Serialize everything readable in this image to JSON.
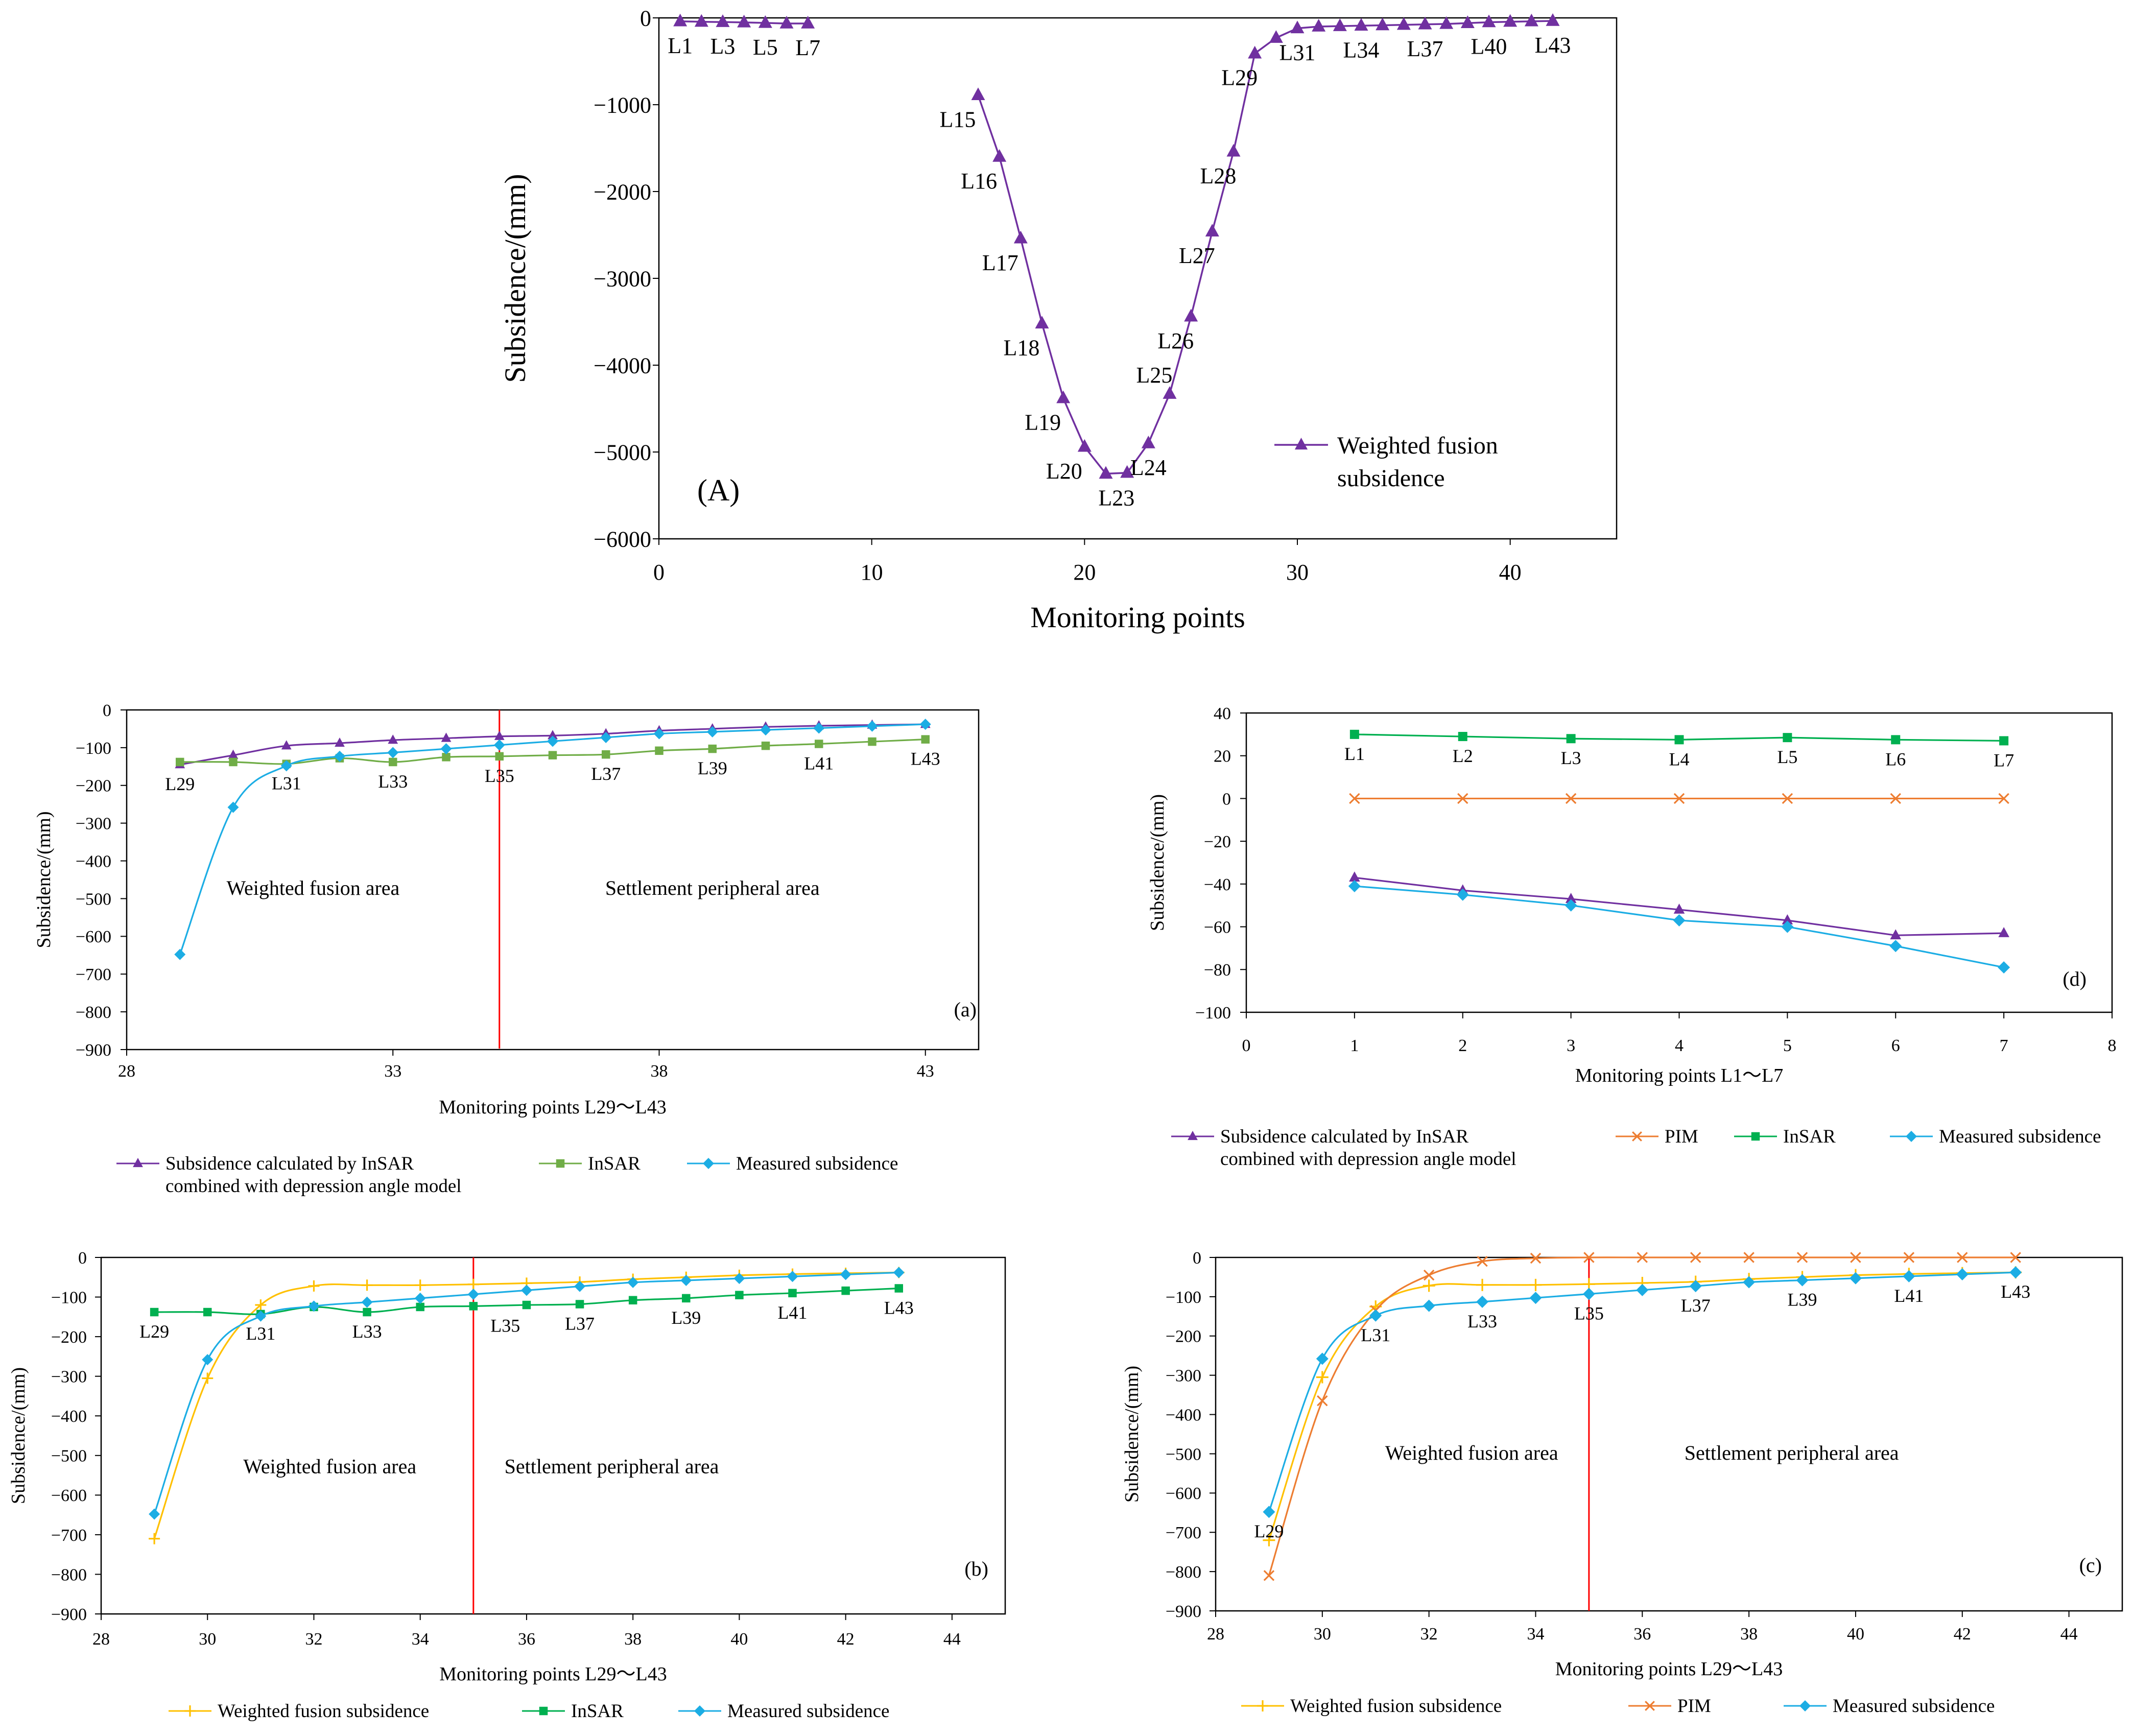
{
  "chart_data": [
    {
      "id": "A",
      "type": "line",
      "panel_label": "(A)",
      "xlabel": "Monitoring points",
      "ylabel": "Subsidence/(mm)",
      "xlim": [
        0,
        45
      ],
      "ylim": [
        -6000,
        0
      ],
      "xticks": [
        0,
        10,
        20,
        30,
        40
      ],
      "yticks": [
        0,
        -1000,
        -2000,
        -3000,
        -4000,
        -5000,
        -6000
      ],
      "legend_position": "bottom-right",
      "series": [
        {
          "name": "Weighted fusion subsidence",
          "color": "#7030A0",
          "marker": "triangle",
          "x": [
            1,
            2,
            3,
            4,
            5,
            6,
            7,
            15,
            16,
            17,
            18,
            19,
            20,
            21,
            22,
            23,
            24,
            25,
            26,
            27,
            28,
            29,
            30,
            31,
            32,
            33,
            34,
            35,
            36,
            37,
            38,
            39,
            40,
            41,
            42
          ],
          "y": [
            -40,
            -45,
            -48,
            -52,
            -58,
            -65,
            -65,
            -890,
            -1600,
            -2540,
            -3520,
            -4380,
            -4940,
            -5250,
            -5240,
            -4900,
            -4330,
            -3440,
            -2460,
            -1540,
            -410,
            -230,
            -120,
            -100,
            -95,
            -90,
            -85,
            -80,
            -75,
            -70,
            -60,
            -50,
            -45,
            -40,
            -35
          ]
        }
      ],
      "point_labels": [
        {
          "text": "L1",
          "x": 1,
          "y": -40,
          "pos": "below"
        },
        {
          "text": "L3",
          "x": 3,
          "y": -48,
          "pos": "below"
        },
        {
          "text": "L5",
          "x": 5,
          "y": -58,
          "pos": "below"
        },
        {
          "text": "L7",
          "x": 7,
          "y": -65,
          "pos": "below"
        },
        {
          "text": "L15",
          "x": 15,
          "y": -890,
          "pos": "below"
        },
        {
          "text": "L16",
          "x": 16,
          "y": -1600,
          "pos": "below"
        },
        {
          "text": "L17",
          "x": 17,
          "y": -2540,
          "pos": "below"
        },
        {
          "text": "L18",
          "x": 18,
          "y": -3520,
          "pos": "below"
        },
        {
          "text": "L19",
          "x": 19,
          "y": -4380,
          "pos": "below"
        },
        {
          "text": "L20",
          "x": 20,
          "y": -4940,
          "pos": "below"
        },
        {
          "text": "L23",
          "x": 21.5,
          "y": -5250,
          "pos": "below"
        },
        {
          "text": "L24",
          "x": 23,
          "y": -4900,
          "pos": "below"
        },
        {
          "text": "L25",
          "x": 24,
          "y": -4330,
          "pos": "above"
        },
        {
          "text": "L26",
          "x": 25,
          "y": -3440,
          "pos": "below"
        },
        {
          "text": "L27",
          "x": 26,
          "y": -2460,
          "pos": "below"
        },
        {
          "text": "L28",
          "x": 27,
          "y": -1540,
          "pos": "below"
        },
        {
          "text": "L29",
          "x": 28,
          "y": -410,
          "pos": "below"
        },
        {
          "text": "L31",
          "x": 30,
          "y": -120,
          "pos": "below"
        },
        {
          "text": "L34",
          "x": 33,
          "y": -90,
          "pos": "below"
        },
        {
          "text": "L37",
          "x": 36,
          "y": -75,
          "pos": "below"
        },
        {
          "text": "L40",
          "x": 39,
          "y": -50,
          "pos": "below"
        },
        {
          "text": "L43",
          "x": 42,
          "y": -35,
          "pos": "below"
        }
      ]
    },
    {
      "id": "a",
      "type": "line",
      "panel_label": "(a)",
      "xlabel": "Monitoring points L29～L43",
      "ylabel": "Subsidence/(mm)",
      "xlim": [
        28,
        44
      ],
      "ylim": [
        -900,
        0
      ],
      "xticks": [
        28,
        33,
        38,
        43
      ],
      "yticks": [
        0,
        -100,
        -200,
        -300,
        -400,
        -500,
        -600,
        -700,
        -800,
        -900
      ],
      "divider_x": 35,
      "region_labels": [
        {
          "text": "Weighted fusion area",
          "x": 31.5,
          "y": -490
        },
        {
          "text": "Settlement peripheral area",
          "x": 39,
          "y": -490
        }
      ],
      "series": [
        {
          "name": "Subsidence calculated by InSAR combined with depression angle model",
          "color": "#7030A0",
          "marker": "triangle",
          "smooth": true,
          "x": [
            29,
            30,
            31,
            32,
            33,
            34,
            35,
            36,
            37,
            38,
            39,
            40,
            41,
            42,
            43
          ],
          "y": [
            -145,
            -120,
            -95,
            -88,
            -80,
            -75,
            -70,
            -68,
            -63,
            -55,
            -50,
            -45,
            -42,
            -40,
            -38
          ]
        },
        {
          "name": "InSAR",
          "color": "#70AD47",
          "marker": "square",
          "smooth": true,
          "x": [
            29,
            30,
            31,
            32,
            33,
            34,
            35,
            36,
            37,
            38,
            39,
            40,
            41,
            42,
            43
          ],
          "y": [
            -138,
            -138,
            -143,
            -128,
            -138,
            -125,
            -123,
            -120,
            -118,
            -108,
            -103,
            -95,
            -90,
            -84,
            -78
          ]
        },
        {
          "name": "Measured subsidence",
          "color": "#1CADE4",
          "marker": "diamond",
          "smooth": true,
          "x": [
            29,
            30,
            31,
            32,
            33,
            34,
            35,
            36,
            37,
            38,
            39,
            40,
            41,
            42,
            43
          ],
          "y": [
            -648,
            -258,
            -148,
            -123,
            -113,
            -103,
            -93,
            -83,
            -73,
            -63,
            -58,
            -53,
            -48,
            -43,
            -38
          ]
        }
      ],
      "point_labels": [
        {
          "text": "L29",
          "x": 29,
          "y": -145,
          "pos": "below"
        },
        {
          "text": "L31",
          "x": 31,
          "y": -143,
          "pos": "below"
        },
        {
          "text": "L33",
          "x": 33,
          "y": -138,
          "pos": "below"
        },
        {
          "text": "L35",
          "x": 35,
          "y": -123,
          "pos": "below"
        },
        {
          "text": "L37",
          "x": 37,
          "y": -118,
          "pos": "below"
        },
        {
          "text": "L39",
          "x": 39,
          "y": -103,
          "pos": "below"
        },
        {
          "text": "L41",
          "x": 41,
          "y": -90,
          "pos": "below"
        },
        {
          "text": "L43",
          "x": 43,
          "y": -78,
          "pos": "below"
        }
      ],
      "legend": [
        "Subsidence calculated by InSAR\ncombined with depression angle model",
        "InSAR",
        "Measured subsidence"
      ]
    },
    {
      "id": "d",
      "type": "line",
      "panel_label": "(d)",
      "xlabel": "Monitoring points L1～L7",
      "ylabel": "Subsidence/(mm)",
      "xlim": [
        0,
        8
      ],
      "ylim": [
        -100,
        40
      ],
      "xticks": [
        0,
        1,
        2,
        3,
        4,
        5,
        6,
        7,
        8
      ],
      "yticks": [
        40,
        20,
        0,
        -20,
        -40,
        -60,
        -80,
        -100
      ],
      "series": [
        {
          "name": "Subsidence calculated by InSAR combined with depression angle model",
          "color": "#7030A0",
          "marker": "triangle",
          "x": [
            1,
            2,
            3,
            4,
            5,
            6,
            7
          ],
          "y": [
            -37,
            -43,
            -47,
            -52,
            -57,
            -64,
            -63
          ]
        },
        {
          "name": "PIM",
          "color": "#ED7D31",
          "marker": "x",
          "x": [
            1,
            2,
            3,
            4,
            5,
            6,
            7
          ],
          "y": [
            0,
            0,
            0,
            0,
            0,
            0,
            0
          ]
        },
        {
          "name": "InSAR",
          "color": "#00B050",
          "marker": "square",
          "x": [
            1,
            2,
            3,
            4,
            5,
            6,
            7
          ],
          "y": [
            30,
            29,
            28,
            27.5,
            28.5,
            27.5,
            27
          ]
        },
        {
          "name": "Measured subsidence",
          "color": "#1CADE4",
          "marker": "diamond",
          "x": [
            1,
            2,
            3,
            4,
            5,
            6,
            7
          ],
          "y": [
            -41,
            -45,
            -50,
            -57,
            -60,
            -69,
            -79
          ]
        }
      ],
      "point_labels": [
        {
          "text": "L1",
          "x": 1,
          "y": 30,
          "pos": "below"
        },
        {
          "text": "L2",
          "x": 2,
          "y": 29,
          "pos": "below"
        },
        {
          "text": "L3",
          "x": 3,
          "y": 28,
          "pos": "below"
        },
        {
          "text": "L4",
          "x": 4,
          "y": 27.5,
          "pos": "below"
        },
        {
          "text": "L5",
          "x": 5,
          "y": 28.5,
          "pos": "below"
        },
        {
          "text": "L6",
          "x": 6,
          "y": 27.5,
          "pos": "below"
        },
        {
          "text": "L7",
          "x": 7,
          "y": 27,
          "pos": "below"
        }
      ],
      "legend": [
        "Subsidence calculated by InSAR\ncombined with depression angle model",
        "PIM",
        "InSAR",
        "Measured subsidence"
      ]
    },
    {
      "id": "b",
      "type": "line",
      "panel_label": "(b)",
      "xlabel": "Monitoring points L29～L43",
      "ylabel": "Subsidence/(mm)",
      "xlim": [
        28,
        45
      ],
      "ylim": [
        -900,
        0
      ],
      "xticks": [
        28,
        30,
        32,
        34,
        36,
        38,
        40,
        42,
        44
      ],
      "yticks": [
        0,
        -100,
        -200,
        -300,
        -400,
        -500,
        -600,
        -700,
        -800,
        -900
      ],
      "divider_x": 35,
      "region_labels": [
        {
          "text": "Weighted fusion area",
          "x": 32.3,
          "y": -545
        },
        {
          "text": "Settlement peripheral area",
          "x": 37.6,
          "y": -545
        }
      ],
      "series": [
        {
          "name": "Weighted fusion subsidence",
          "color": "#FFC000",
          "marker": "plus",
          "smooth": true,
          "x": [
            29,
            30,
            31,
            32,
            33,
            34,
            35,
            36,
            37,
            38,
            39,
            40,
            41,
            42,
            43
          ],
          "y": [
            -710,
            -305,
            -120,
            -72,
            -70,
            -70,
            -68,
            -65,
            -62,
            -55,
            -50,
            -45,
            -42,
            -40,
            -38
          ]
        },
        {
          "name": "InSAR",
          "color": "#00B050",
          "marker": "square",
          "smooth": true,
          "x": [
            29,
            30,
            31,
            32,
            33,
            34,
            35,
            36,
            37,
            38,
            39,
            40,
            41,
            42,
            43
          ],
          "y": [
            -138,
            -138,
            -143,
            -125,
            -138,
            -125,
            -123,
            -120,
            -118,
            -108,
            -103,
            -95,
            -90,
            -84,
            -78
          ]
        },
        {
          "name": "Measured subsidence",
          "color": "#1CADE4",
          "marker": "diamond",
          "smooth": true,
          "x": [
            29,
            30,
            31,
            32,
            33,
            34,
            35,
            36,
            37,
            38,
            39,
            40,
            41,
            42,
            43
          ],
          "y": [
            -648,
            -258,
            -148,
            -123,
            -113,
            -103,
            -93,
            -83,
            -73,
            -63,
            -58,
            -53,
            -48,
            -43,
            -38
          ]
        }
      ],
      "point_labels": [
        {
          "text": "L29",
          "x": 29,
          "y": -138,
          "pos": "below"
        },
        {
          "text": "L31",
          "x": 31,
          "y": -143,
          "pos": "below"
        },
        {
          "text": "L33",
          "x": 33,
          "y": -138,
          "pos": "below"
        },
        {
          "text": "L35",
          "x": 35.6,
          "y": -123,
          "pos": "below"
        },
        {
          "text": "L37",
          "x": 37,
          "y": -118,
          "pos": "below"
        },
        {
          "text": "L39",
          "x": 39,
          "y": -103,
          "pos": "below"
        },
        {
          "text": "L41",
          "x": 41,
          "y": -90,
          "pos": "below"
        },
        {
          "text": "L43",
          "x": 43,
          "y": -78,
          "pos": "below"
        }
      ],
      "legend": [
        "Weighted fusion subsidence",
        "InSAR",
        "Measured subsidence"
      ]
    },
    {
      "id": "c",
      "type": "line",
      "panel_label": "(c)",
      "xlabel": "Monitoring points L29～L43",
      "ylabel": "Subsidence/(mm)",
      "xlim": [
        28,
        45
      ],
      "ylim": [
        -900,
        0
      ],
      "xticks": [
        28,
        30,
        32,
        34,
        36,
        38,
        40,
        42,
        44
      ],
      "yticks": [
        0,
        -100,
        -200,
        -300,
        -400,
        -500,
        -600,
        -700,
        -800,
        -900
      ],
      "divider_x": 35,
      "region_labels": [
        {
          "text": "Weighted fusion area",
          "x": 32.8,
          "y": -515
        },
        {
          "text": "Settlement peripheral area",
          "x": 38.8,
          "y": -515
        }
      ],
      "series": [
        {
          "name": "Weighted fusion subsidence",
          "color": "#FFC000",
          "marker": "plus",
          "smooth": true,
          "x": [
            29,
            30,
            31,
            32,
            33,
            34,
            35,
            36,
            37,
            38,
            39,
            40,
            41,
            42,
            43
          ],
          "y": [
            -720,
            -305,
            -125,
            -72,
            -70,
            -70,
            -68,
            -65,
            -62,
            -55,
            -50,
            -45,
            -42,
            -40,
            -38
          ]
        },
        {
          "name": "PIM",
          "color": "#ED7D31",
          "marker": "x",
          "smooth": true,
          "x": [
            29,
            30,
            31,
            32,
            33,
            34,
            35,
            36,
            37,
            38,
            39,
            40,
            41,
            42,
            43
          ],
          "y": [
            -810,
            -365,
            -135,
            -45,
            -10,
            -2,
            0,
            0,
            0,
            0,
            0,
            0,
            0,
            0,
            0
          ]
        },
        {
          "name": "Measured subsidence",
          "color": "#1CADE4",
          "marker": "diamond",
          "smooth": true,
          "x": [
            29,
            30,
            31,
            32,
            33,
            34,
            35,
            36,
            37,
            38,
            39,
            40,
            41,
            42,
            43
          ],
          "y": [
            -648,
            -258,
            -148,
            -123,
            -113,
            -103,
            -93,
            -83,
            -73,
            -63,
            -58,
            -53,
            -48,
            -43,
            -38
          ]
        }
      ],
      "point_labels": [
        {
          "text": "L29",
          "x": 29,
          "y": -648,
          "pos": "below"
        },
        {
          "text": "L31",
          "x": 31,
          "y": -148,
          "pos": "below"
        },
        {
          "text": "L33",
          "x": 33,
          "y": -113,
          "pos": "below"
        },
        {
          "text": "L35",
          "x": 35,
          "y": -93,
          "pos": "below"
        },
        {
          "text": "L37",
          "x": 37,
          "y": -73,
          "pos": "below"
        },
        {
          "text": "L39",
          "x": 39,
          "y": -58,
          "pos": "below"
        },
        {
          "text": "L41",
          "x": 41,
          "y": -48,
          "pos": "below"
        },
        {
          "text": "L43",
          "x": 43,
          "y": -38,
          "pos": "below"
        }
      ],
      "legend": [
        "Weighted fusion subsidence",
        "PIM",
        "Measured subsidence"
      ]
    }
  ]
}
